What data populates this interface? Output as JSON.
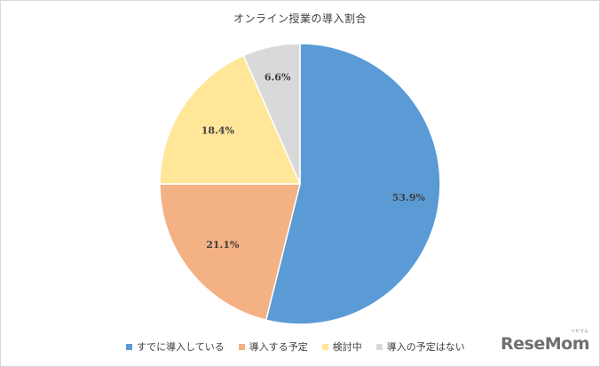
{
  "chart_data": {
    "type": "pie",
    "title": "オンライン授業の導入割合",
    "slices": [
      {
        "label": "すでに導入している",
        "value": 53.9,
        "display": "53.9%",
        "color": "#5b9bd5"
      },
      {
        "label": "導入する予定",
        "value": 21.1,
        "display": "21.1%",
        "color": "#f4b183"
      },
      {
        "label": "検討中",
        "value": 18.4,
        "display": "18.4%",
        "color": "#ffe699"
      },
      {
        "label": "導入の予定はない",
        "value": 6.6,
        "display": "6.6%",
        "color": "#d9d9d9"
      }
    ],
    "start": "12 o'clock",
    "direction": "clockwise",
    "legend_position": "bottom"
  },
  "watermark": {
    "text": "ReseMom",
    "ruby": "リセマム"
  }
}
